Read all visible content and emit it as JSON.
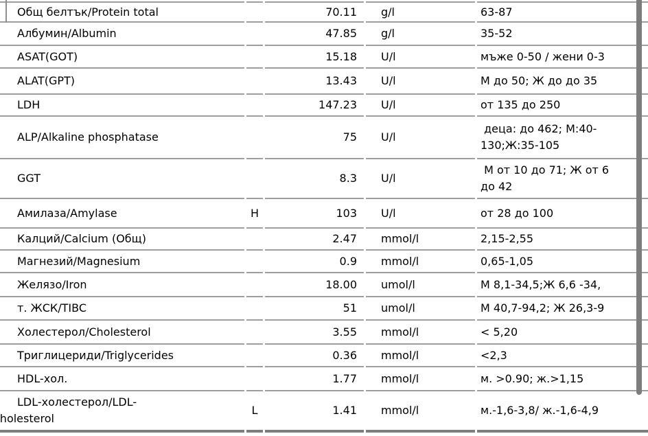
{
  "document": {
    "type": "lab-results-table",
    "columns": [
      "name",
      "flag",
      "value",
      "unit",
      "reference"
    ],
    "rows": [
      {
        "name": "Общ белтък/Protein total",
        "flag": "",
        "value": "70.11",
        "unit": "g/l",
        "reference": "63-87"
      },
      {
        "name": "Албумин/Albumin",
        "flag": "",
        "value": "47.85",
        "unit": "g/l",
        "reference": "35-52"
      },
      {
        "name": "ASAT(GOT)",
        "flag": "",
        "value": "15.18",
        "unit": "U/l",
        "reference": "мъже 0-50 / жени 0-3"
      },
      {
        "name": "ALAT(GPT)",
        "flag": "",
        "value": "13.43",
        "unit": "U/l",
        "reference": "М до 50; Ж до до 35"
      },
      {
        "name": "LDH",
        "flag": "",
        "value": "147.23",
        "unit": "U/l",
        "reference": "от 135 до 250"
      },
      {
        "name": "ALP/Alkaline phosphatase",
        "flag": "",
        "value": "75",
        "unit": "U/l",
        "reference": " деца: до 462; М:40-\n130;Ж:35-105"
      },
      {
        "name": "GGT",
        "flag": "",
        "value": "8.3",
        "unit": "U/l",
        "reference": " М от 10 до 71; Ж от 6\nдо 42"
      },
      {
        "name": "Амилаза/Amylase",
        "flag": "H",
        "value": "103",
        "unit": "U/l",
        "reference": "от 28 до 100"
      },
      {
        "name": "Калций/Calcium (Общ)",
        "flag": "",
        "value": "2.47",
        "unit": "mmol/l",
        "reference": "2,15-2,55"
      },
      {
        "name": "Магнезий/Magnesium",
        "flag": "",
        "value": "0.9",
        "unit": "mmol/l",
        "reference": "0,65-1,05"
      },
      {
        "name": "Желязо/Iron",
        "flag": "",
        "value": "18.00",
        "unit": "umol/l",
        "reference": "М 8,1-34,5;Ж 6,6 -34,"
      },
      {
        "name": "т. ЖСК/TIBC",
        "flag": "",
        "value": "51",
        "unit": "umol/l",
        "reference": "М 40,7-94,2; Ж 26,3-9"
      },
      {
        "name": "Холестерол/Cholesterol",
        "flag": "",
        "value": "3.55",
        "unit": "mmol/l",
        "reference": "< 5,20"
      },
      {
        "name": "Триглицериди/Triglycerides",
        "flag": "",
        "value": "0.36",
        "unit": "mmol/l",
        "reference": "<2,3"
      },
      {
        "name": "HDL-хол.",
        "flag": "",
        "value": "1.77",
        "unit": "mmol/l",
        "reference": "м. >0.90; ж.>1,15"
      },
      {
        "name": "LDL-холестерол/LDL-\ncholesterol",
        "flag": "L",
        "value": "1.41",
        "unit": "mmol/l",
        "reference": "м.-1,6-3,8/ ж.-1,6-4,9"
      }
    ],
    "colors": {
      "row_rule": "#9e9e9e",
      "bottom_rule": "#7d7d7d",
      "scrollbar_thumb": "#7d7d7d",
      "text": "#000000",
      "background": "#ffffff"
    }
  }
}
